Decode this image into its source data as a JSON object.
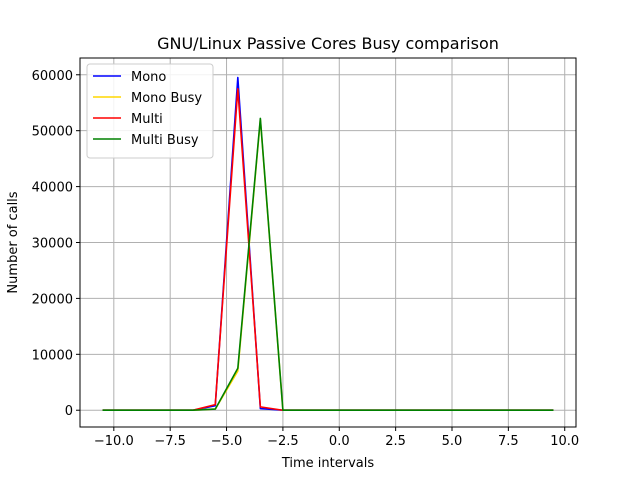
{
  "chart_data": {
    "type": "line",
    "title": "GNU/Linux Passive Cores Busy comparison",
    "xlabel": "Time intervals",
    "ylabel": "Number of calls",
    "xlim": [
      -11.5,
      10.5
    ],
    "ylim": [
      -3000,
      63000
    ],
    "xticks": [
      -10,
      -7.5,
      -5,
      -2.5,
      0,
      2.5,
      5,
      7.5,
      10
    ],
    "xtick_labels": [
      "−10.0",
      "−7.5",
      "−5.0",
      "−2.5",
      "0.0",
      "2.5",
      "5.0",
      "7.5",
      "10.0"
    ],
    "yticks": [
      0,
      10000,
      20000,
      30000,
      40000,
      50000,
      60000
    ],
    "ytick_labels": [
      "0",
      "10000",
      "20000",
      "30000",
      "40000",
      "50000",
      "60000"
    ],
    "grid": true,
    "legend_position": "top-left",
    "x": [
      -10.5,
      -9.5,
      -8.5,
      -7.5,
      -6.5,
      -5.5,
      -4.5,
      -3.5,
      -2.5,
      -1.5,
      -0.5,
      0.5,
      1.5,
      2.5,
      3.5,
      4.5,
      5.5,
      6.5,
      7.5,
      8.5,
      9.5
    ],
    "series": [
      {
        "name": "Mono",
        "color": "#0000ff",
        "values": [
          0,
          0,
          0,
          0,
          0,
          800,
          59500,
          300,
          0,
          0,
          0,
          0,
          0,
          0,
          0,
          0,
          0,
          0,
          0,
          0,
          0
        ]
      },
      {
        "name": "Mono Busy",
        "color": "#ffd700",
        "values": [
          0,
          0,
          0,
          0,
          0,
          200,
          7000,
          52000,
          0,
          0,
          0,
          0,
          0,
          0,
          0,
          0,
          0,
          0,
          0,
          0,
          0
        ]
      },
      {
        "name": "Multi",
        "color": "#ff0000",
        "values": [
          0,
          0,
          0,
          0,
          0,
          1000,
          57500,
          600,
          0,
          0,
          0,
          0,
          0,
          0,
          0,
          0,
          0,
          0,
          0,
          0,
          0
        ]
      },
      {
        "name": "Multi Busy",
        "color": "#008000",
        "values": [
          0,
          0,
          0,
          0,
          0,
          200,
          7500,
          52200,
          0,
          0,
          0,
          0,
          0,
          0,
          0,
          0,
          0,
          0,
          0,
          0,
          0
        ]
      }
    ]
  }
}
